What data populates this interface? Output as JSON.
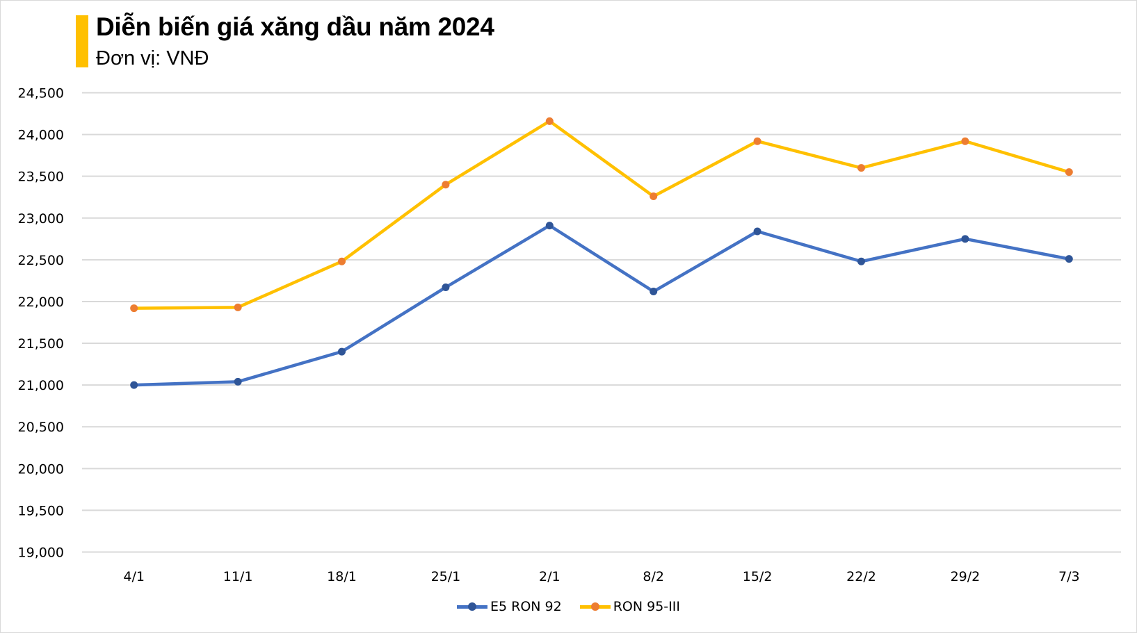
{
  "header": {
    "title": "Diễn biến giá xăng dầu năm 2024",
    "subtitle": "Đơn vị: VNĐ",
    "accent_color": "#ffc000"
  },
  "legend": [
    {
      "name": "E5 RON 92",
      "line_color": "#4472c4",
      "marker_color": "#2f5597"
    },
    {
      "name": "RON 95-III",
      "line_color": "#ffc000",
      "marker_color": "#ed7d31"
    }
  ],
  "chart_data": {
    "type": "line",
    "title": "Diễn biến giá xăng dầu năm 2024",
    "subtitle": "Đơn vị: VNĐ",
    "xlabel": "",
    "ylabel": "",
    "categories": [
      "4/1",
      "11/1",
      "18/1",
      "25/1",
      "2/1",
      "8/2",
      "15/2",
      "22/2",
      "29/2",
      "7/3"
    ],
    "series": [
      {
        "name": "E5 RON 92",
        "color": "#4472c4",
        "values": [
          21000,
          21040,
          21400,
          22170,
          22910,
          22120,
          22840,
          22480,
          22750,
          22510
        ]
      },
      {
        "name": "RON 95-III",
        "color": "#ffc000",
        "values": [
          21920,
          21930,
          22480,
          23400,
          24160,
          23260,
          23920,
          23600,
          23920,
          23550
        ]
      }
    ],
    "ylim": [
      19000,
      24500
    ],
    "yticks": [
      19000,
      19500,
      20000,
      20500,
      21000,
      21500,
      22000,
      22500,
      23000,
      23500,
      24000,
      24500
    ],
    "ytick_labels": [
      "19,000",
      "19,500",
      "20,000",
      "20,500",
      "21,000",
      "21,500",
      "22,000",
      "22,500",
      "23,000",
      "23,500",
      "24,000",
      "24,500"
    ],
    "grid": true,
    "legend_position": "bottom"
  }
}
